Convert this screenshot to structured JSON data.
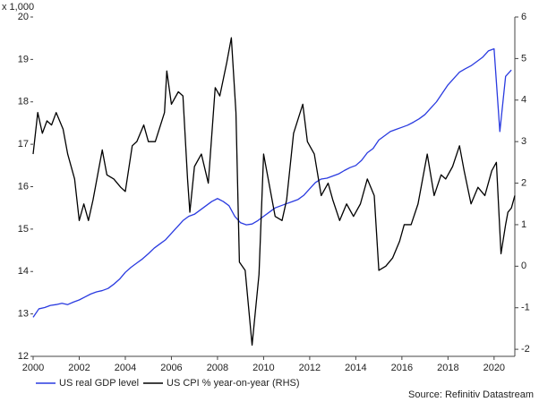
{
  "chart_data": {
    "type": "line",
    "y_unit": "x 1,000",
    "source": "Source: Refinitiv Datastream",
    "xlim": [
      2000,
      2020.9
    ],
    "xticks": [
      2000,
      2002,
      2004,
      2006,
      2008,
      2010,
      2012,
      2014,
      2016,
      2018,
      2020
    ],
    "ylim": [
      12,
      20
    ],
    "yticks": [
      12,
      13,
      14,
      15,
      16,
      17,
      18,
      19,
      20
    ],
    "y2lim": [
      -2.17,
      6
    ],
    "y2ticks": [
      -2,
      -1,
      0,
      1,
      2,
      3,
      4,
      5,
      6
    ],
    "series": [
      {
        "name": "US real GDP level",
        "color": "#2a3be0",
        "x": [
          2000,
          2000.25,
          2000.5,
          2000.75,
          2001,
          2001.25,
          2001.5,
          2001.75,
          2002,
          2002.25,
          2002.5,
          2002.75,
          2003,
          2003.25,
          2003.5,
          2003.75,
          2004,
          2004.25,
          2004.5,
          2004.75,
          2005,
          2005.25,
          2005.5,
          2005.75,
          2006,
          2006.25,
          2006.5,
          2006.75,
          2007,
          2007.25,
          2007.5,
          2007.75,
          2008,
          2008.25,
          2008.5,
          2008.75,
          2009,
          2009.25,
          2009.5,
          2009.75,
          2010,
          2010.25,
          2010.5,
          2010.75,
          2011,
          2011.25,
          2011.5,
          2011.75,
          2012,
          2012.25,
          2012.5,
          2012.75,
          2013,
          2013.25,
          2013.5,
          2013.75,
          2014,
          2014.25,
          2014.5,
          2014.75,
          2015,
          2015.25,
          2015.5,
          2015.75,
          2016,
          2016.25,
          2016.5,
          2016.75,
          2017,
          2017.25,
          2017.5,
          2017.75,
          2018,
          2018.25,
          2018.5,
          2018.75,
          2019,
          2019.25,
          2019.5,
          2019.75,
          2020,
          2020.25,
          2020.5,
          2020.75
        ],
        "values": [
          12.92,
          13.12,
          13.15,
          13.2,
          13.22,
          13.25,
          13.22,
          13.28,
          13.33,
          13.4,
          13.47,
          13.52,
          13.55,
          13.6,
          13.7,
          13.82,
          13.98,
          14.1,
          14.2,
          14.3,
          14.42,
          14.55,
          14.65,
          14.75,
          14.9,
          15.05,
          15.2,
          15.3,
          15.35,
          15.45,
          15.55,
          15.65,
          15.72,
          15.65,
          15.55,
          15.3,
          15.15,
          15.1,
          15.12,
          15.2,
          15.3,
          15.4,
          15.5,
          15.55,
          15.6,
          15.65,
          15.7,
          15.8,
          15.95,
          16.1,
          16.18,
          16.2,
          16.25,
          16.3,
          16.38,
          16.45,
          16.5,
          16.62,
          16.8,
          16.9,
          17.1,
          17.2,
          17.3,
          17.35,
          17.4,
          17.45,
          17.52,
          17.6,
          17.7,
          17.85,
          18.0,
          18.2,
          18.4,
          18.55,
          18.7,
          18.78,
          18.85,
          18.95,
          19.05,
          19.2,
          19.25,
          17.3,
          18.6,
          18.75
        ]
      },
      {
        "name": "US CPI % year-on-year (RHS)",
        "color": "#000000",
        "axis": "y2",
        "x": [
          2000,
          2000.2,
          2000.4,
          2000.6,
          2000.8,
          2001,
          2001.3,
          2001.5,
          2001.8,
          2002,
          2002.2,
          2002.4,
          2002.6,
          2002.8,
          2003,
          2003.2,
          2003.5,
          2003.8,
          2004,
          2004.3,
          2004.5,
          2004.8,
          2005,
          2005.3,
          2005.7,
          2005.8,
          2006,
          2006.3,
          2006.5,
          2006.7,
          2006.8,
          2007,
          2007.3,
          2007.6,
          2007.9,
          2008.1,
          2008.4,
          2008.6,
          2008.8,
          2008.95,
          2009.2,
          2009.5,
          2009.8,
          2010,
          2010.2,
          2010.5,
          2010.8,
          2011,
          2011.3,
          2011.7,
          2011.9,
          2012.2,
          2012.5,
          2012.8,
          2013,
          2013.3,
          2013.6,
          2013.9,
          2014.2,
          2014.5,
          2014.8,
          2015,
          2015.3,
          2015.6,
          2015.9,
          2016.1,
          2016.4,
          2016.7,
          2016.9,
          2017.1,
          2017.4,
          2017.7,
          2017.9,
          2018.2,
          2018.5,
          2018.7,
          2019,
          2019.3,
          2019.6,
          2019.9,
          2020.1,
          2020.3,
          2020.5,
          2020.6,
          2020.75,
          2020.9
        ],
        "values": [
          2.7,
          3.7,
          3.2,
          3.5,
          3.4,
          3.7,
          3.3,
          2.7,
          2.1,
          1.1,
          1.5,
          1.1,
          1.6,
          2.2,
          2.8,
          2.2,
          2.1,
          1.9,
          1.8,
          2.9,
          3.0,
          3.4,
          3.0,
          3.0,
          3.7,
          4.7,
          3.9,
          4.2,
          4.1,
          2.1,
          1.3,
          2.4,
          2.7,
          2.0,
          4.3,
          4.1,
          4.9,
          5.5,
          3.7,
          0.1,
          -0.1,
          -1.9,
          -0.2,
          2.7,
          2.1,
          1.2,
          1.1,
          1.6,
          3.2,
          3.9,
          3.0,
          2.7,
          1.7,
          2.0,
          1.6,
          1.1,
          1.5,
          1.2,
          1.5,
          2.1,
          1.7,
          -0.1,
          0.0,
          0.2,
          0.6,
          1.0,
          1.0,
          1.5,
          2.1,
          2.7,
          1.7,
          2.2,
          2.1,
          2.4,
          2.9,
          2.3,
          1.5,
          1.9,
          1.7,
          2.3,
          2.5,
          0.3,
          1.0,
          1.3,
          1.4,
          1.7
        ]
      }
    ]
  }
}
